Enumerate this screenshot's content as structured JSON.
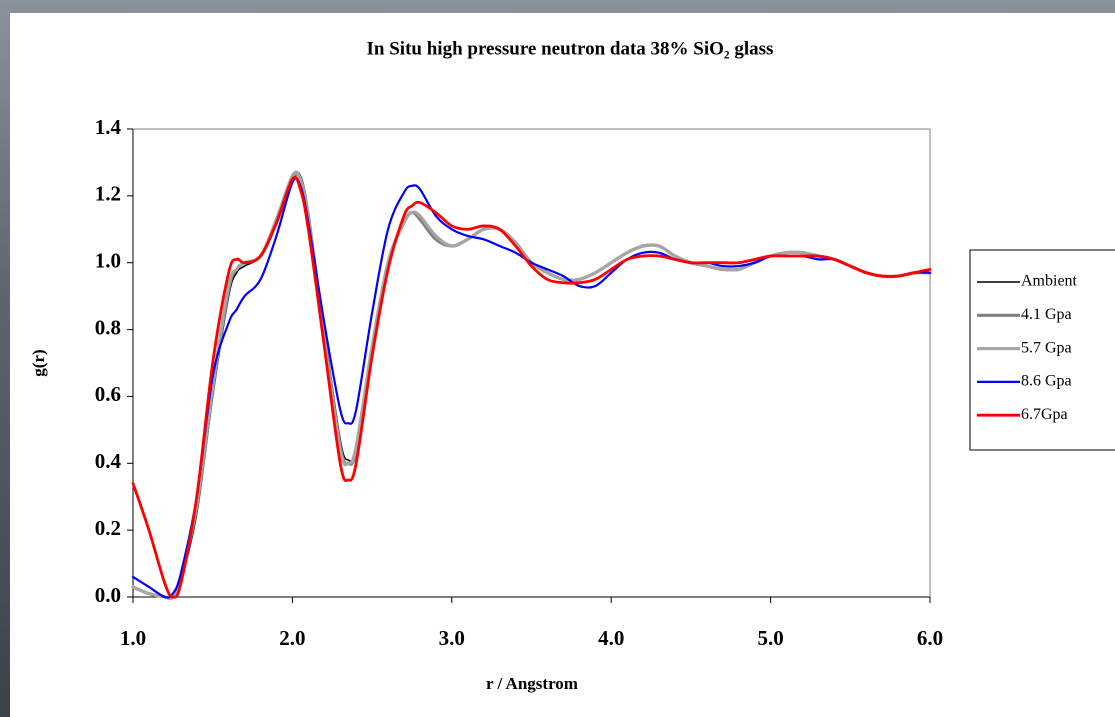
{
  "chart_data": {
    "type": "line",
    "title": "In Situ high pressure neutron data 38% SiO₂ glass",
    "x_label": "r / Angstrom",
    "y_label": "g(r)",
    "xlim": [
      1.0,
      6.0
    ],
    "ylim": [
      0.0,
      1.4
    ],
    "xticks": [
      {
        "value": 1.0,
        "label": "1.0"
      },
      {
        "value": 2.0,
        "label": "2.0"
      },
      {
        "value": 3.0,
        "label": "3.0"
      },
      {
        "value": 4.0,
        "label": "4.0"
      },
      {
        "value": 5.0,
        "label": "5.0"
      },
      {
        "value": 6.0,
        "label": "6.0"
      }
    ],
    "yticks": [
      {
        "value": 0.0,
        "label": "0.0"
      },
      0.2,
      0.4,
      0.6,
      0.8,
      {
        "value": 1.0,
        "label": "1.0"
      },
      1.2,
      1.4
    ],
    "grid": false,
    "legend": "right",
    "x": [
      1.0,
      1.1,
      1.2,
      1.25,
      1.3,
      1.4,
      1.5,
      1.6,
      1.65,
      1.7,
      1.8,
      1.9,
      2.0,
      2.05,
      2.1,
      2.2,
      2.3,
      2.35,
      2.4,
      2.5,
      2.6,
      2.7,
      2.75,
      2.8,
      2.9,
      3.0,
      3.1,
      3.2,
      3.3,
      3.4,
      3.5,
      3.6,
      3.7,
      3.8,
      3.9,
      4.0,
      4.1,
      4.2,
      4.3,
      4.4,
      4.5,
      4.6,
      4.7,
      4.8,
      4.9,
      5.0,
      5.1,
      5.2,
      5.3,
      5.4,
      5.5,
      5.6,
      5.7,
      5.8,
      5.9,
      6.0
    ],
    "series": [
      {
        "name": "Ambient",
        "color": "#000000",
        "values": [
          0.03,
          0.01,
          0.0,
          0.0,
          0.05,
          0.25,
          0.6,
          0.9,
          0.97,
          0.99,
          1.02,
          1.12,
          1.25,
          1.26,
          1.15,
          0.8,
          0.47,
          0.41,
          0.45,
          0.75,
          1.0,
          1.12,
          1.15,
          1.13,
          1.07,
          1.05,
          1.07,
          1.1,
          1.1,
          1.06,
          1.0,
          0.97,
          0.95,
          0.95,
          0.97,
          1.0,
          1.03,
          1.05,
          1.05,
          1.02,
          1.0,
          0.99,
          0.98,
          0.98,
          1.0,
          1.02,
          1.03,
          1.03,
          1.02,
          1.01,
          0.99,
          0.97,
          0.96,
          0.96,
          0.97,
          0.97
        ]
      },
      {
        "name": "4.1 Gpa",
        "color": "#808080",
        "values": [
          0.03,
          0.01,
          0.0,
          0.0,
          0.06,
          0.27,
          0.62,
          0.92,
          0.98,
          1.0,
          1.02,
          1.12,
          1.25,
          1.25,
          1.14,
          0.78,
          0.45,
          0.4,
          0.44,
          0.74,
          1.0,
          1.12,
          1.15,
          1.13,
          1.07,
          1.05,
          1.07,
          1.1,
          1.1,
          1.06,
          1.0,
          0.97,
          0.95,
          0.95,
          0.97,
          1.0,
          1.03,
          1.05,
          1.05,
          1.02,
          1.0,
          0.99,
          0.98,
          0.98,
          1.0,
          1.02,
          1.03,
          1.03,
          1.02,
          1.01,
          0.99,
          0.97,
          0.96,
          0.96,
          0.97,
          0.97
        ]
      },
      {
        "name": "5.7 Gpa",
        "color": "#a6a6a6",
        "values": [
          0.03,
          0.01,
          0.0,
          0.0,
          0.06,
          0.28,
          0.63,
          0.93,
          0.98,
          1.0,
          1.02,
          1.13,
          1.26,
          1.25,
          1.13,
          0.77,
          0.44,
          0.4,
          0.45,
          0.75,
          1.0,
          1.12,
          1.15,
          1.14,
          1.08,
          1.05,
          1.07,
          1.1,
          1.1,
          1.06,
          1.0,
          0.97,
          0.95,
          0.95,
          0.97,
          1.0,
          1.03,
          1.05,
          1.05,
          1.02,
          1.0,
          0.99,
          0.98,
          0.98,
          1.0,
          1.02,
          1.03,
          1.03,
          1.02,
          1.01,
          0.99,
          0.97,
          0.96,
          0.96,
          0.97,
          0.97
        ]
      },
      {
        "name": "8.6 Gpa",
        "color": "#0000ff",
        "values": [
          0.06,
          0.03,
          0.0,
          0.01,
          0.07,
          0.3,
          0.66,
          0.82,
          0.86,
          0.9,
          0.95,
          1.08,
          1.24,
          1.23,
          1.12,
          0.82,
          0.56,
          0.52,
          0.56,
          0.85,
          1.1,
          1.21,
          1.23,
          1.22,
          1.14,
          1.1,
          1.08,
          1.07,
          1.05,
          1.03,
          1.0,
          0.98,
          0.96,
          0.93,
          0.93,
          0.97,
          1.01,
          1.03,
          1.03,
          1.01,
          1.0,
          1.0,
          0.99,
          0.99,
          1.0,
          1.02,
          1.02,
          1.02,
          1.01,
          1.01,
          0.99,
          0.97,
          0.96,
          0.96,
          0.97,
          0.97
        ]
      },
      {
        "name": "6.7Gpa",
        "color": "#ff0000",
        "values": [
          0.34,
          0.2,
          0.04,
          0.0,
          0.04,
          0.3,
          0.7,
          0.97,
          1.01,
          1.0,
          1.02,
          1.12,
          1.25,
          1.22,
          1.1,
          0.75,
          0.4,
          0.35,
          0.4,
          0.72,
          0.98,
          1.14,
          1.17,
          1.18,
          1.15,
          1.11,
          1.1,
          1.11,
          1.1,
          1.05,
          0.99,
          0.95,
          0.94,
          0.94,
          0.95,
          0.98,
          1.01,
          1.02,
          1.02,
          1.01,
          1.0,
          1.0,
          1.0,
          1.0,
          1.01,
          1.02,
          1.02,
          1.02,
          1.02,
          1.01,
          0.99,
          0.97,
          0.96,
          0.96,
          0.97,
          0.98
        ]
      }
    ]
  }
}
